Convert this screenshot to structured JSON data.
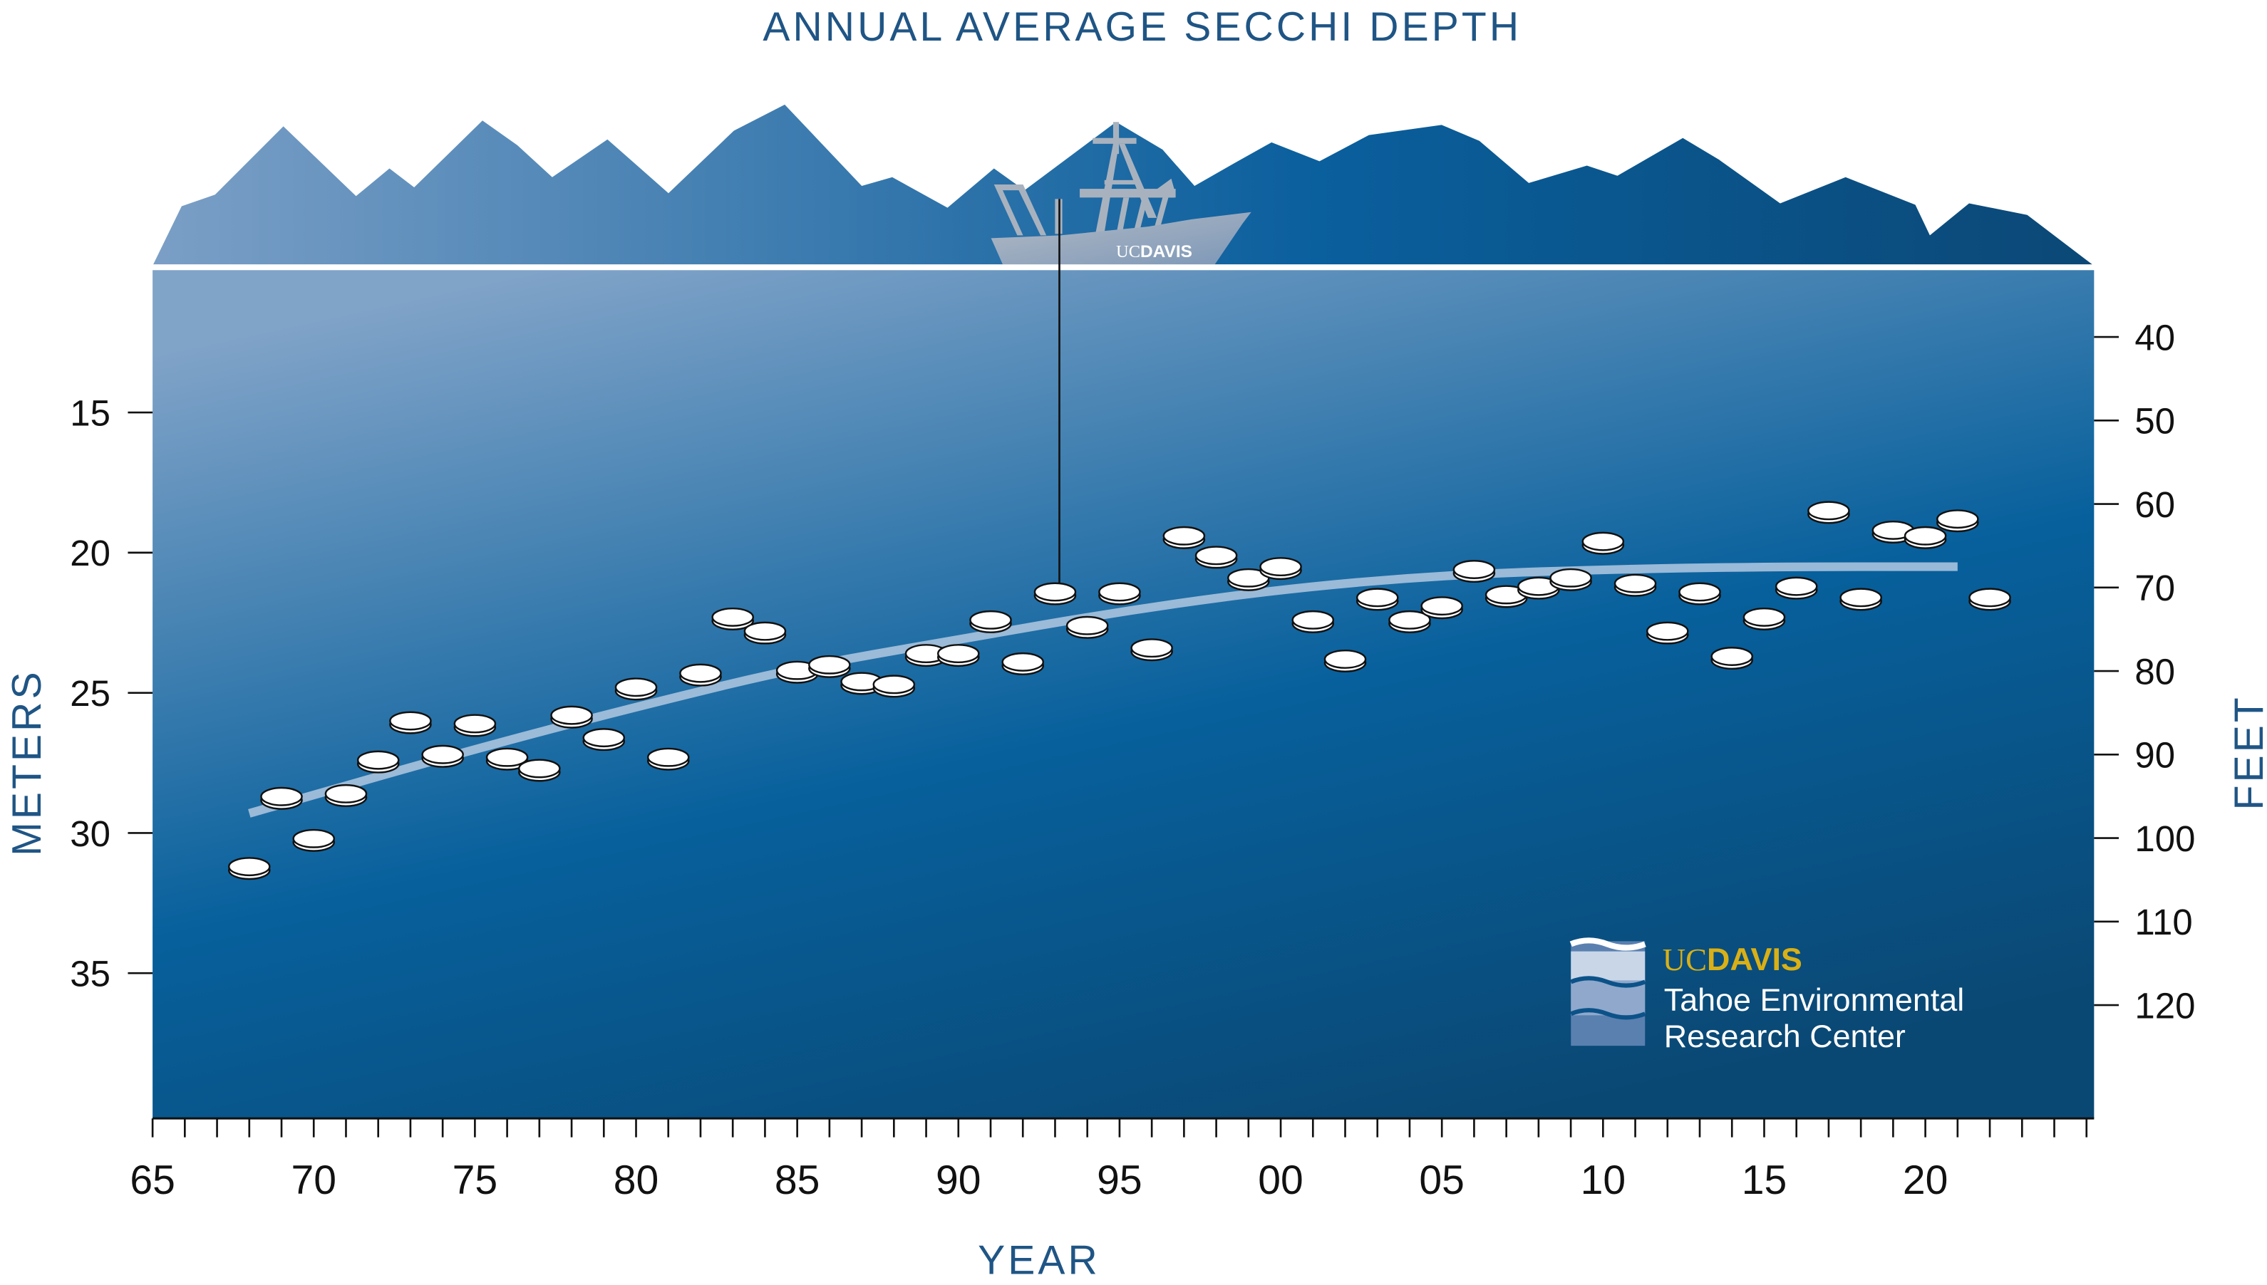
{
  "chart_data": {
    "type": "scatter",
    "title": "ANNUAL AVERAGE SECCHI DEPTH",
    "xlabel": "YEAR",
    "ylabel_left": "METERS",
    "ylabel_right": "FEET",
    "xlim": [
      1965,
      2025
    ],
    "ylim_meters": [
      10,
      40.5
    ],
    "y_inverted": true,
    "x_tick_labels": [
      "65",
      "70",
      "75",
      "80",
      "85",
      "90",
      "95",
      "00",
      "05",
      "10",
      "15",
      "20"
    ],
    "x_tick_values": [
      1965,
      1970,
      1975,
      1980,
      1985,
      1990,
      1995,
      2000,
      2005,
      2010,
      2015,
      2020
    ],
    "y_left_ticks": [
      15,
      20,
      25,
      30,
      35
    ],
    "y_right_ticks": [
      40,
      50,
      60,
      70,
      80,
      90,
      100,
      110,
      120
    ],
    "grid": false,
    "marker": "secchi-disk",
    "points": [
      [
        1968,
        31.2
      ],
      [
        1969,
        28.7
      ],
      [
        1970,
        30.2
      ],
      [
        1971,
        28.6
      ],
      [
        1972,
        27.4
      ],
      [
        1973,
        26.0
      ],
      [
        1974,
        27.2
      ],
      [
        1975,
        26.1
      ],
      [
        1976,
        27.3
      ],
      [
        1977,
        27.7
      ],
      [
        1978,
        25.8
      ],
      [
        1979,
        26.6
      ],
      [
        1980,
        24.8
      ],
      [
        1981,
        27.3
      ],
      [
        1982,
        24.3
      ],
      [
        1983,
        22.3
      ],
      [
        1984,
        22.8
      ],
      [
        1985,
        24.2
      ],
      [
        1986,
        24.0
      ],
      [
        1987,
        24.6
      ],
      [
        1988,
        24.7
      ],
      [
        1989,
        23.6
      ],
      [
        1990,
        23.6
      ],
      [
        1991,
        22.4
      ],
      [
        1992,
        23.9
      ],
      [
        1993,
        21.4
      ],
      [
        1994,
        22.6
      ],
      [
        1995,
        21.4
      ],
      [
        1996,
        23.4
      ],
      [
        1997,
        19.4
      ],
      [
        1998,
        20.1
      ],
      [
        1999,
        20.9
      ],
      [
        2000,
        20.5
      ],
      [
        2001,
        22.4
      ],
      [
        2002,
        23.8
      ],
      [
        2003,
        21.6
      ],
      [
        2004,
        22.4
      ],
      [
        2005,
        21.9
      ],
      [
        2006,
        20.6
      ],
      [
        2007,
        21.5
      ],
      [
        2008,
        21.2
      ],
      [
        2009,
        20.9
      ],
      [
        2010,
        19.6
      ],
      [
        2011,
        21.1
      ],
      [
        2012,
        22.8
      ],
      [
        2013,
        21.4
      ],
      [
        2014,
        23.7
      ],
      [
        2015,
        22.3
      ],
      [
        2016,
        21.2
      ],
      [
        2017,
        18.5
      ],
      [
        2018,
        21.6
      ],
      [
        2019,
        19.2
      ],
      [
        2020,
        19.4
      ],
      [
        2021,
        18.8
      ],
      [
        2022,
        21.6
      ]
    ],
    "trend_line": [
      [
        1968,
        29.3
      ],
      [
        1975,
        27.0
      ],
      [
        1980,
        25.5
      ],
      [
        1985,
        24.1
      ],
      [
        1990,
        23.1
      ],
      [
        1995,
        22.1
      ],
      [
        2000,
        21.3
      ],
      [
        2005,
        20.8
      ],
      [
        2010,
        20.6
      ],
      [
        2015,
        20.5
      ],
      [
        2021,
        20.5
      ]
    ],
    "colors": {
      "title": "#1f5585",
      "water_top": "#80a3c8",
      "water_mid": "#07609c",
      "water_bottom": "#0a4a78",
      "trend": "#a9c3de",
      "disk": "#ffffff",
      "boat": "#a8b2be",
      "logo_gold": "#d9b016"
    }
  },
  "boat": {
    "label": "UCDAVIS",
    "label_uc": "UC",
    "label_davis": "DAVIS"
  },
  "logo": {
    "uc": "UC",
    "davis": "DAVIS",
    "line1": "Tahoe Environmental",
    "line2": "Research Center"
  }
}
